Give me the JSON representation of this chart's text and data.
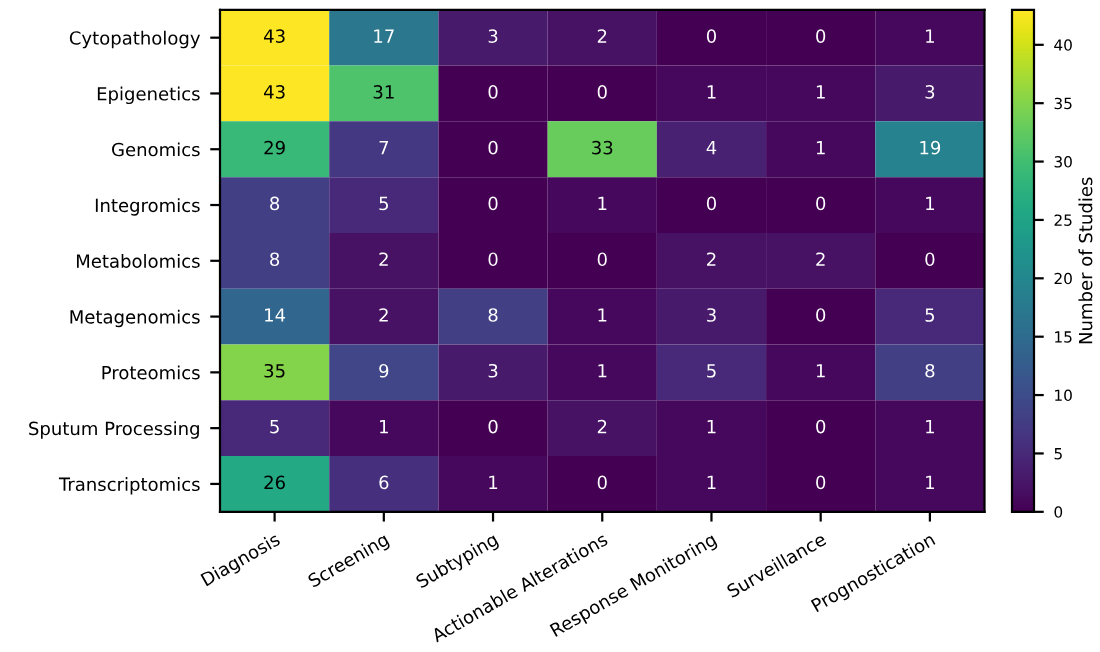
{
  "chart_data": {
    "type": "heatmap",
    "clabel": "Number of Studies",
    "categories": [
      "Diagnosis",
      "Screening",
      "Subtyping",
      "Actionable Alterations",
      "Response Monitoring",
      "Surveillance",
      "Prognostication"
    ],
    "y_categories": [
      "Cytopathology",
      "Epigenetics",
      "Genomics",
      "Integromics",
      "Metabolomics",
      "Metagenomics",
      "Proteomics",
      "Sputum Processing",
      "Transcriptomics"
    ],
    "cells": [
      [
        43,
        17,
        3,
        2,
        0,
        0,
        1
      ],
      [
        43,
        31,
        0,
        0,
        1,
        1,
        3
      ],
      [
        29,
        7,
        0,
        33,
        4,
        1,
        19
      ],
      [
        8,
        5,
        0,
        1,
        0,
        0,
        1
      ],
      [
        8,
        2,
        0,
        0,
        2,
        2,
        0
      ],
      [
        14,
        2,
        8,
        1,
        3,
        0,
        5
      ],
      [
        35,
        9,
        3,
        1,
        5,
        1,
        8
      ],
      [
        5,
        1,
        0,
        2,
        1,
        0,
        1
      ],
      [
        26,
        6,
        1,
        0,
        1,
        0,
        1
      ]
    ],
    "clim": [
      0,
      43
    ],
    "cticks": [
      0,
      5,
      10,
      15,
      20,
      25,
      30,
      35,
      40
    ],
    "data_labels": true
  }
}
